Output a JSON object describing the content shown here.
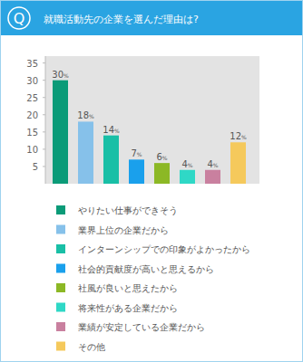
{
  "chart_data": {
    "type": "bar",
    "title": "就職活動先の企業を選んだ理由は?",
    "annotations": [
      "Q"
    ],
    "categories": [
      "やりたい仕事ができそう",
      "業界上位の企業だから",
      "インターンシップでの印象がよかったから",
      "社会的貢献度が高いと思えるから",
      "社風が良いと思えたから",
      "将来性がある企業だから",
      "業績が安定している企業だから",
      "その他"
    ],
    "values": [
      30,
      18,
      14,
      7,
      6,
      4,
      4,
      12
    ],
    "value_labels": [
      "30%",
      "18%",
      "14%",
      "7%",
      "6%",
      "4%",
      "4%",
      "12%"
    ],
    "colors": [
      "#0b9b78",
      "#86c1ea",
      "#19bfa6",
      "#1aa0ec",
      "#8cb825",
      "#2fd8c6",
      "#c9809f",
      "#f5c95c"
    ],
    "ylim": [
      0,
      37
    ],
    "yticks": [
      5,
      10,
      15,
      20,
      25,
      30,
      35
    ],
    "grid": false,
    "data_labels": true,
    "legend": "bottom"
  }
}
